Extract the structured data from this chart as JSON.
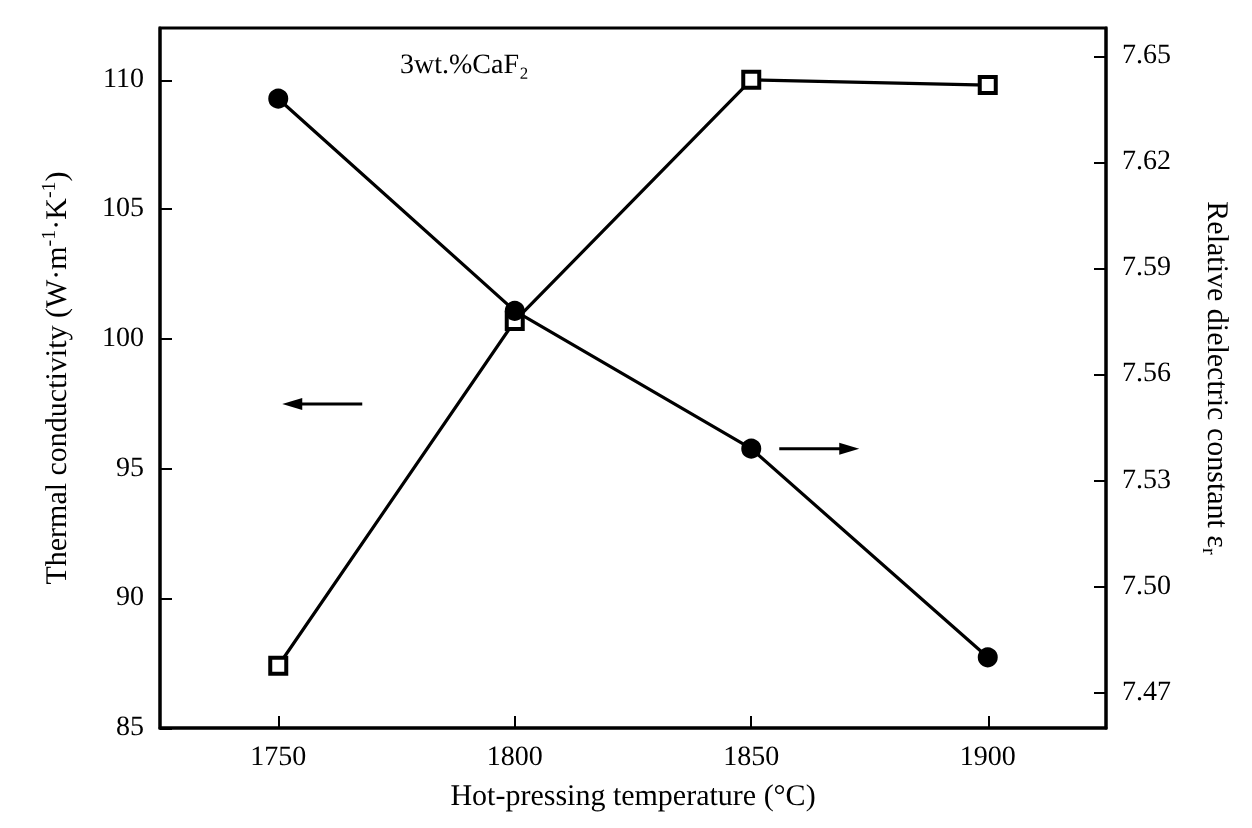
{
  "chart_data": {
    "type": "line",
    "xlabel": "Hot-pressing temperature (°C)",
    "ylabel": "Thermal conductivity (W·m$^{-1}$·K$^{-1}$)",
    "y2label": "Relative dielectric constant ε$_{r}$",
    "annotations": [
      "3wt.%CaF₂"
    ],
    "x": [
      1750,
      1800,
      1850,
      1900
    ],
    "xlim": [
      1725,
      1925
    ],
    "xticks": [
      1750,
      1800,
      1850,
      1900
    ],
    "ylim": [
      85,
      112
    ],
    "yticks": [
      85,
      90,
      95,
      100,
      105,
      110
    ],
    "y2lim": [
      7.46,
      7.658
    ],
    "y2ticks": [
      7.47,
      {
        "value": 7.5,
        "label": "7.50"
      },
      7.53,
      7.56,
      7.59,
      7.62,
      7.65
    ],
    "series": [
      {
        "color": "#000000",
        "marker": "square",
        "values": [
          87.4,
          100.7,
          110.0,
          109.8
        ]
      },
      {
        "color": "#000000",
        "marker": "circle",
        "axis": "y2",
        "values": [
          7.638,
          7.578,
          7.539,
          7.48
        ]
      }
    ],
    "grid": false,
    "line_style": "solid"
  }
}
